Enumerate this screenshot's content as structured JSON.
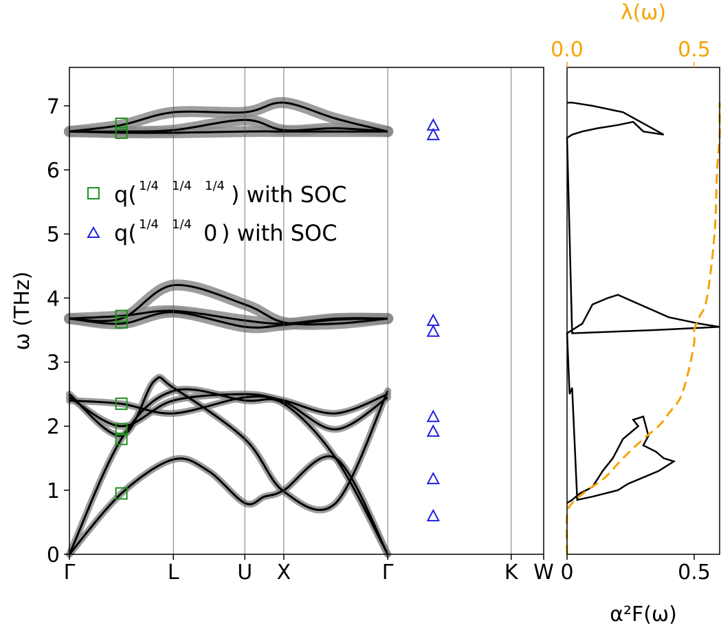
{
  "chart_data": [
    {
      "type": "line",
      "panel": "phonon-dispersion",
      "ylabel": "ω (THz)",
      "ylim": [
        0,
        7.6
      ],
      "y_ticks": [
        "0",
        "1",
        "2",
        "3",
        "4",
        "5",
        "6",
        "7"
      ],
      "x_ticks": [
        "Γ",
        "L",
        "U",
        "X",
        "Γ",
        "K",
        "W"
      ],
      "x_tick_positions": [
        0,
        0.8,
        1.35,
        1.65,
        2.45,
        3.4,
        3.65
      ],
      "xlim": [
        0,
        3.65
      ],
      "legend": [
        {
          "label_prefix": "q(",
          "fractions": [
            "1/4",
            "1/4",
            "1/4"
          ],
          "label_suffix": ") with SOC",
          "marker": "square",
          "color": "#1f8f1f"
        },
        {
          "label_prefix": "q(",
          "fractions": [
            "1/4",
            "1/4"
          ],
          "third": "0",
          "label_suffix": ") with SOC",
          "marker": "triangle",
          "color": "#1f1fe0"
        }
      ],
      "series": [
        {
          "x": [
            0,
            0.4,
            0.8,
            1.07,
            1.35,
            1.5,
            1.65,
            2.05,
            2.45
          ],
          "y": [
            0,
            0.95,
            1.48,
            1.3,
            0.8,
            0.9,
            1.0,
            1.5,
            0
          ]
        },
        {
          "x": [
            0,
            0.4,
            0.8,
            1.35,
            1.65,
            2.05,
            2.45
          ],
          "y": [
            0,
            1.8,
            2.55,
            2.4,
            2.35,
            1.5,
            0
          ]
        },
        {
          "x": [
            0,
            0.4,
            0.65,
            0.8,
            1.35,
            1.65,
            2.05,
            2.45
          ],
          "y": [
            2.5,
            1.85,
            2.7,
            2.6,
            1.8,
            0.98,
            0.8,
            2.55
          ]
        },
        {
          "x": [
            0,
            0.4,
            0.8,
            1.35,
            1.65,
            2.05,
            2.45
          ],
          "y": [
            2.45,
            2.0,
            2.4,
            2.5,
            2.4,
            2.2,
            2.5
          ]
        },
        {
          "x": [
            0,
            0.4,
            0.8,
            1.35,
            1.65,
            2.05,
            2.45
          ],
          "y": [
            2.4,
            2.35,
            2.2,
            2.45,
            2.38,
            1.95,
            2.45
          ]
        },
        {
          "x": [
            0,
            0.4,
            0.8,
            1.35,
            1.65,
            2.05,
            2.45
          ],
          "y": [
            3.68,
            3.68,
            4.2,
            3.9,
            3.62,
            3.6,
            3.68
          ]
        },
        {
          "x": [
            0,
            0.4,
            0.8,
            1.35,
            1.65,
            2.05,
            2.45
          ],
          "y": [
            3.68,
            3.72,
            3.8,
            3.65,
            3.6,
            3.68,
            3.68
          ]
        },
        {
          "x": [
            0,
            0.4,
            0.8,
            1.35,
            1.65,
            2.05,
            2.45
          ],
          "y": [
            3.68,
            3.6,
            3.78,
            3.55,
            3.58,
            3.66,
            3.68
          ]
        },
        {
          "x": [
            0,
            0.4,
            0.8,
            1.35,
            1.65,
            2.05,
            2.45
          ],
          "y": [
            6.6,
            6.7,
            6.9,
            6.9,
            7.05,
            6.8,
            6.6
          ]
        },
        {
          "x": [
            0,
            0.4,
            0.8,
            1.35,
            1.65,
            2.05,
            2.45
          ],
          "y": [
            6.6,
            6.6,
            6.62,
            6.78,
            6.62,
            6.65,
            6.6
          ]
        },
        {
          "x": [
            0,
            0.4,
            0.8,
            1.35,
            1.65,
            2.05,
            2.45
          ],
          "y": [
            6.6,
            6.58,
            6.58,
            6.6,
            6.6,
            6.6,
            6.6
          ]
        }
      ],
      "markers_square": [
        {
          "x": 0.4,
          "y": 0.95
        },
        {
          "x": 0.4,
          "y": 1.8
        },
        {
          "x": 0.4,
          "y": 1.95
        },
        {
          "x": 0.4,
          "y": 2.35
        },
        {
          "x": 0.4,
          "y": 3.62
        },
        {
          "x": 0.4,
          "y": 3.72
        },
        {
          "x": 0.4,
          "y": 6.58
        },
        {
          "x": 0.4,
          "y": 6.72
        }
      ],
      "markers_triangle": [
        {
          "x": 2.8,
          "y": 0.6
        },
        {
          "x": 2.8,
          "y": 1.18
        },
        {
          "x": 2.8,
          "y": 1.92
        },
        {
          "x": 2.8,
          "y": 2.15
        },
        {
          "x": 2.8,
          "y": 3.48
        },
        {
          "x": 2.8,
          "y": 3.65
        },
        {
          "x": 2.8,
          "y": 6.55
        },
        {
          "x": 2.8,
          "y": 6.7
        }
      ]
    },
    {
      "type": "line",
      "panel": "eliashberg",
      "xlabel": "α²F(ω)",
      "top_label": "λ(ω)",
      "xlim": [
        0,
        0.6
      ],
      "ylim": [
        0,
        7.6
      ],
      "x_ticks": [
        "0",
        "0.5"
      ],
      "top_ticks": [
        "0.0",
        "0.5"
      ],
      "series": [
        {
          "name": "a2F",
          "color": "#000000",
          "x": [
            0,
            0.02,
            0.05,
            0.1,
            0.14,
            0.18,
            0.22,
            0.25,
            0.28,
            0.26,
            0.3,
            0.32,
            0.3,
            0.35,
            0.38,
            0.42,
            0.36,
            0.3,
            0.24,
            0.2,
            0.1,
            0.04,
            0.02,
            0.01,
            0,
            0.02,
            0.06,
            0.1,
            0.16,
            0.2,
            0.4,
            0.52,
            0.6,
            0.35,
            0.02,
            0,
            0.02,
            0.06,
            0.12,
            0.2,
            0.26,
            0.3,
            0.38,
            0.22,
            0.1,
            0.02,
            0
          ],
          "y": [
            0.8,
            0.85,
            0.95,
            1.05,
            1.3,
            1.5,
            1.8,
            1.9,
            2.0,
            2.1,
            2.15,
            1.85,
            1.7,
            1.6,
            1.5,
            1.45,
            1.3,
            1.2,
            1.1,
            1.0,
            0.9,
            0.85,
            2.6,
            2.5,
            3.45,
            3.5,
            3.6,
            3.9,
            4.0,
            4.05,
            3.7,
            3.6,
            3.55,
            3.5,
            3.45,
            6.5,
            6.55,
            6.6,
            6.65,
            6.7,
            6.75,
            6.6,
            6.55,
            6.9,
            7.0,
            7.05,
            7.05
          ]
        },
        {
          "name": "lambda",
          "color": "#f5a300",
          "x": [
            0,
            0.0,
            0.02,
            0.08,
            0.15,
            0.22,
            0.3,
            0.36,
            0.4,
            0.44,
            0.46,
            0.48,
            0.5,
            0.5,
            0.52,
            0.55,
            0.58,
            0.59,
            0.6,
            0.61,
            0.62
          ],
          "y": [
            0,
            0.6,
            0.8,
            1.0,
            1.2,
            1.5,
            1.8,
            2.0,
            2.2,
            2.4,
            2.6,
            2.9,
            3.3,
            3.5,
            3.7,
            4.0,
            5.0,
            6.0,
            6.5,
            6.8,
            7.05
          ]
        }
      ]
    }
  ]
}
